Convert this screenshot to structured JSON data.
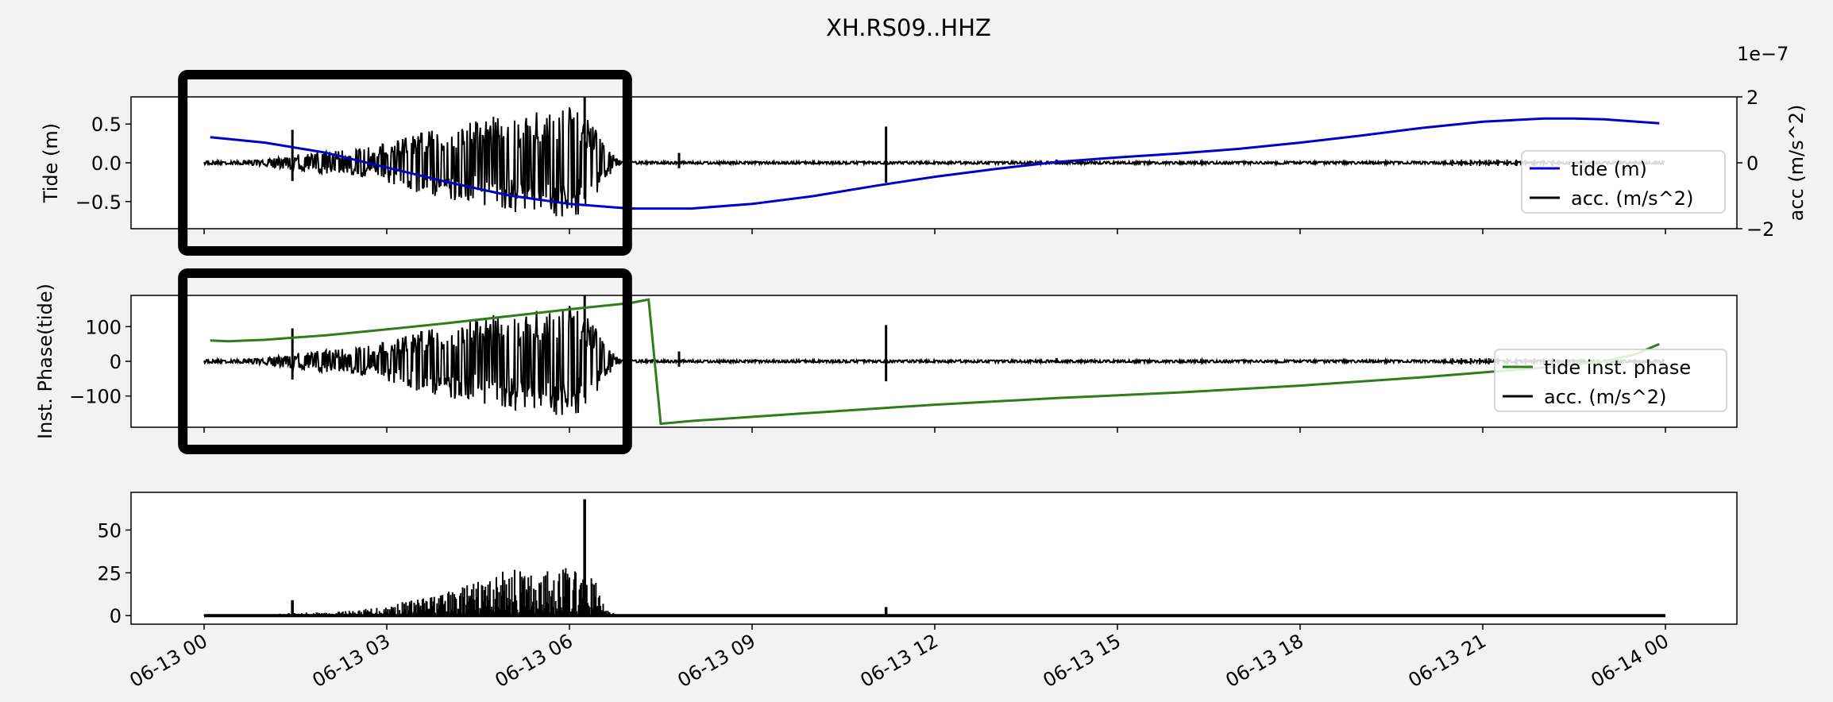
{
  "figure": {
    "title": "XH.RS09..HHZ",
    "background": "#f2f2f2",
    "x_axis": {
      "type": "date",
      "range": [
        "2025-06-13 00:00",
        "2025-06-14 00:00"
      ],
      "tick_labels": [
        "06-13 00",
        "06-13 03",
        "06-13 06",
        "06-13 09",
        "06-13 12",
        "06-13 15",
        "06-13 18",
        "06-13 21",
        "06-14 00"
      ]
    }
  },
  "chart_data": [
    {
      "type": "line",
      "panel": "top",
      "ylabel": "Tide (m)",
      "ylim": [
        -0.85,
        0.85
      ],
      "yticks": [
        0.5,
        0.0,
        -0.5
      ],
      "ytick_labels": [
        "0.5",
        "0.0",
        "−0.5"
      ],
      "secondary_axis": {
        "ylabel": "acc (m/s^2)",
        "offset_text": "1e−7",
        "ylim": [
          -2,
          2
        ],
        "yticks": [
          2,
          0,
          -2
        ],
        "ytick_labels": [
          "2",
          "0",
          "−2"
        ]
      },
      "legend": {
        "placement": "center-right",
        "entries": [
          "tide (m)",
          "acc. (m/s^2)"
        ]
      },
      "series": [
        {
          "name": "tide (m)",
          "color": "#0000cc",
          "x_hours": [
            0.1,
            1,
            2,
            3,
            4,
            5,
            6,
            7,
            8,
            9,
            10,
            11,
            12,
            13,
            14,
            15,
            16,
            17,
            18,
            19,
            20,
            21,
            22,
            22.5,
            23,
            23.9
          ],
          "values": [
            0.33,
            0.26,
            0.13,
            -0.06,
            -0.25,
            -0.42,
            -0.53,
            -0.59,
            -0.59,
            -0.53,
            -0.43,
            -0.3,
            -0.18,
            -0.08,
            0.01,
            0.07,
            0.12,
            0.18,
            0.26,
            0.35,
            0.45,
            0.53,
            0.57,
            0.57,
            0.56,
            0.51
          ]
        },
        {
          "name": "acc. (m/s^2)",
          "color": "#000000",
          "unit_scale": "1e-7",
          "burst_envelope_hours": [
            0,
            0.5,
            1,
            1.5,
            2,
            2.5,
            3,
            3.5,
            4,
            4.5,
            5,
            5.5,
            6,
            6.3,
            6.6,
            6.8
          ],
          "burst_envelope_values": [
            0.05,
            0.05,
            0.1,
            0.25,
            0.35,
            0.4,
            0.6,
            0.9,
            1.1,
            1.35,
            1.5,
            1.55,
            1.75,
            1.4,
            0.5,
            0.1
          ],
          "spikes_hours": [
            1.45,
            6.25,
            7.8,
            11.2,
            14.0
          ],
          "spikes_values": [
            1.0,
            2.0,
            0.3,
            1.1,
            0.1
          ]
        }
      ]
    },
    {
      "type": "line",
      "panel": "middle",
      "ylabel": "Inst. Phase(tide)",
      "ylim": [
        -190,
        190
      ],
      "yticks": [
        100,
        0,
        -100
      ],
      "ytick_labels": [
        "100",
        "0",
        "−100"
      ],
      "legend": {
        "placement": "center-right",
        "entries": [
          "tide inst. phase",
          "acc. (m/s^2)"
        ]
      },
      "series": [
        {
          "name": "tide inst. phase",
          "color": "#2e7d1a",
          "x_hours": [
            0.1,
            0.4,
            1,
            2,
            3,
            4,
            5,
            6,
            7,
            7.3,
            7.5,
            8,
            10,
            12,
            14,
            16,
            18,
            20,
            22,
            23,
            23.5,
            23.9
          ],
          "values": [
            60,
            58,
            62,
            75,
            92,
            110,
            130,
            150,
            168,
            178,
            -180,
            -172,
            -148,
            -125,
            -106,
            -90,
            -70,
            -46,
            -18,
            0,
            20,
            50
          ]
        },
        {
          "name": "acc. (m/s^2)",
          "color": "#000000",
          "note": "same acceleration trace as top panel"
        }
      ]
    },
    {
      "type": "line",
      "panel": "bottom",
      "ylim": [
        -5,
        72
      ],
      "yticks": [
        50,
        25,
        0
      ],
      "ytick_labels": [
        "50",
        "25",
        "0"
      ],
      "series": [
        {
          "name": "",
          "color": "#000000",
          "envelope_hours": [
            0,
            1,
            1.5,
            2,
            2.5,
            3,
            3.5,
            4,
            4.5,
            5,
            5.5,
            6,
            6.2,
            6.4,
            6.6,
            6.8
          ],
          "envelope_values": [
            0,
            0.5,
            2,
            2,
            3,
            6,
            10,
            14,
            20,
            28,
            25,
            30,
            22,
            24,
            4,
            0
          ],
          "spikes_hours": [
            1.45,
            6.25,
            11.2
          ],
          "spikes_values": [
            9,
            68,
            5
          ]
        }
      ]
    }
  ],
  "annotations": {
    "highlight_boxes": [
      {
        "panel": "top",
        "x_hours": [
          -0.35,
          6.95
        ],
        "label": ""
      },
      {
        "panel": "middle",
        "x_hours": [
          -0.35,
          6.95
        ],
        "label": ""
      }
    ],
    "box_color": "#000000"
  }
}
